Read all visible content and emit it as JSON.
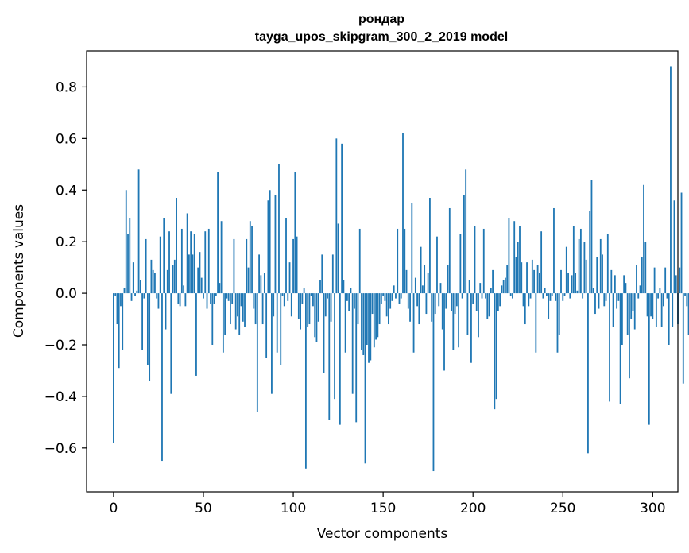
{
  "chart_data": {
    "type": "bar",
    "title_line1": "рондар",
    "title_line2": "tayga_upos_skipgram_300_2_2019 model",
    "xlabel": "Vector components",
    "ylabel": "Components values",
    "xlim": [
      -15,
      314
    ],
    "ylim": [
      -0.77,
      0.94
    ],
    "xticks": [
      0,
      50,
      100,
      150,
      200,
      250,
      300
    ],
    "yticks": [
      -0.6,
      -0.4,
      -0.2,
      0.0,
      0.2,
      0.4,
      0.6,
      0.8
    ],
    "ytick_labels": [
      "−0.6",
      "−0.4",
      "−0.2",
      "0.0",
      "0.2",
      "0.4",
      "0.6",
      "0.8"
    ],
    "grid": false,
    "legend": "none",
    "bar_color": "#1f77b4",
    "values": [
      -0.58,
      -0.01,
      -0.12,
      -0.29,
      -0.05,
      -0.22,
      0.02,
      0.4,
      0.23,
      0.29,
      -0.03,
      0.12,
      -0.01,
      0.01,
      0.48,
      0.05,
      -0.22,
      -0.02,
      0.21,
      -0.28,
      -0.34,
      0.13,
      0.09,
      0.08,
      -0.02,
      -0.06,
      0.22,
      -0.65,
      0.29,
      -0.14,
      0.09,
      0.24,
      -0.39,
      0.11,
      0.13,
      0.37,
      -0.04,
      -0.05,
      0.25,
      0.03,
      -0.05,
      0.31,
      0.15,
      0.24,
      0.15,
      0.23,
      -0.32,
      0.1,
      0.16,
      0.06,
      -0.02,
      0.24,
      -0.06,
      0.25,
      -0.04,
      -0.2,
      -0.04,
      -0.01,
      0.47,
      0.04,
      0.28,
      -0.23,
      -0.16,
      -0.02,
      -0.03,
      -0.12,
      -0.04,
      0.21,
      -0.14,
      -0.09,
      -0.16,
      -0.05,
      -0.11,
      -0.13,
      0.21,
      0.1,
      0.28,
      0.26,
      -0.06,
      -0.12,
      -0.46,
      0.15,
      0.07,
      -0.12,
      0.08,
      -0.25,
      0.36,
      0.4,
      -0.39,
      -0.09,
      0.38,
      -0.23,
      0.5,
      -0.28,
      -0.01,
      -0.05,
      0.29,
      -0.03,
      0.12,
      -0.09,
      0.21,
      0.47,
      0.22,
      -0.1,
      -0.14,
      -0.04,
      0.02,
      -0.68,
      -0.13,
      -0.12,
      -0.01,
      -0.05,
      -0.17,
      -0.19,
      -0.11,
      0.05,
      0.15,
      -0.31,
      -0.09,
      -0.02,
      -0.49,
      -0.11,
      0.15,
      -0.41,
      0.6,
      0.27,
      -0.51,
      0.58,
      0.05,
      -0.23,
      -0.03,
      -0.07,
      0.02,
      -0.39,
      -0.06,
      -0.5,
      -0.12,
      0.25,
      -0.22,
      -0.24,
      -0.66,
      -0.2,
      -0.27,
      -0.26,
      -0.08,
      -0.21,
      -0.18,
      -0.17,
      -0.12,
      -0.04,
      -0.01,
      -0.03,
      -0.09,
      -0.12,
      -0.06,
      -0.03,
      0.03,
      -0.02,
      0.25,
      -0.04,
      -0.02,
      0.62,
      0.25,
      0.09,
      -0.06,
      -0.11,
      0.35,
      -0.23,
      0.06,
      -0.05,
      -0.12,
      0.18,
      0.03,
      0.11,
      -0.08,
      0.08,
      0.37,
      -0.11,
      -0.69,
      -0.08,
      0.22,
      -0.05,
      0.04,
      -0.14,
      -0.3,
      -0.06,
      0.11,
      0.33,
      -0.07,
      -0.22,
      -0.08,
      -0.05,
      -0.21,
      0.23,
      -0.02,
      0.38,
      0.48,
      -0.16,
      0.05,
      -0.27,
      -0.04,
      0.26,
      -0.07,
      -0.17,
      0.04,
      -0.02,
      0.25,
      -0.02,
      -0.1,
      -0.09,
      0.02,
      0.09,
      -0.45,
      -0.41,
      -0.07,
      -0.05,
      0.03,
      0.05,
      0.06,
      0.11,
      0.29,
      -0.01,
      -0.02,
      0.28,
      0.14,
      0.2,
      0.26,
      0.12,
      -0.05,
      -0.12,
      0.12,
      -0.05,
      -0.02,
      0.13,
      0.09,
      -0.23,
      0.11,
      0.08,
      0.24,
      -0.02,
      0.02,
      -0.01,
      -0.1,
      -0.03,
      -0.01,
      0.33,
      -0.03,
      -0.23,
      -0.16,
      0.09,
      -0.03,
      -0.01,
      0.18,
      0.08,
      -0.02,
      0.07,
      0.26,
      0.08,
      0.01,
      0.21,
      0.25,
      -0.02,
      0.2,
      0.13,
      -0.62,
      0.32,
      0.44,
      0.02,
      -0.08,
      0.14,
      -0.06,
      0.21,
      0.15,
      -0.05,
      -0.03,
      0.23,
      -0.42,
      0.09,
      -0.13,
      0.07,
      -0.06,
      -0.03,
      -0.43,
      -0.2,
      0.07,
      0.04,
      -0.16,
      -0.33,
      -0.1,
      -0.07,
      -0.14,
      0.11,
      -0.02,
      0.03,
      0.14,
      0.42,
      0.2,
      -0.09,
      -0.51,
      -0.09,
      -0.1,
      0.1,
      -0.13,
      -0.02,
      0.02,
      -0.13,
      -0.05,
      0.1,
      -0.02,
      -0.2,
      0.88,
      -0.13,
      0.36,
      0.07,
      -0.12,
      0.1,
      0.39,
      -0.35,
      -0.01,
      -0.05,
      -0.16
    ]
  }
}
